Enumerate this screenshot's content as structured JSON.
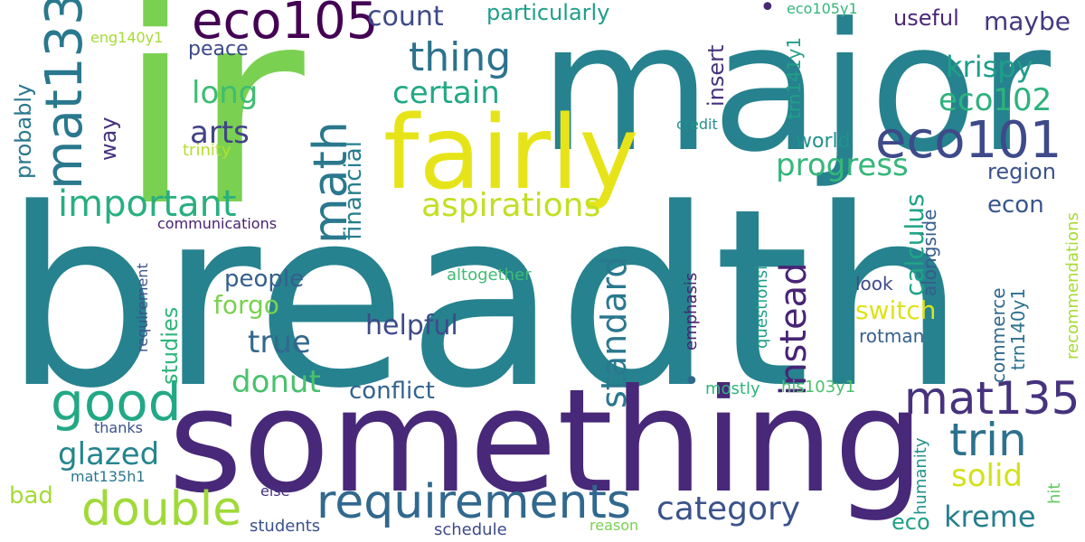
{
  "palette": {
    "dark_purple": "#440154",
    "indigo": "#482878",
    "slate_blue": "#3e4a89",
    "steel_blue": "#31688e",
    "teal": "#26828e",
    "sea_green": "#1f9e89",
    "green": "#35b779",
    "light_green": "#6ece58",
    "lime": "#b5de2b",
    "yellow": "#fde725"
  },
  "words": [
    {
      "text": "breadth",
      "color": "#26828e"
    },
    {
      "text": "ir",
      "color": "#7ad151"
    },
    {
      "text": "major",
      "color": "#26828e"
    },
    {
      "text": "something",
      "color": "#482878"
    },
    {
      "text": "fairly",
      "color": "#e6e419"
    },
    {
      "text": "requirements",
      "color": "#31688e"
    },
    {
      "text": "eco105",
      "color": "#440154"
    },
    {
      "text": "mat133",
      "color": "#2a788e"
    },
    {
      "text": "eco101",
      "color": "#3e4a89"
    },
    {
      "text": "mat135",
      "color": "#46327e"
    },
    {
      "text": "double",
      "color": "#a0da39"
    },
    {
      "text": "good",
      "color": "#22a884"
    },
    {
      "text": "trin",
      "color": "#2c728e"
    },
    {
      "text": "math",
      "color": "#2a788e"
    },
    {
      "text": "important",
      "color": "#29af7f"
    },
    {
      "text": "aspirations",
      "color": "#c2df23"
    },
    {
      "text": "category",
      "color": "#3b528b"
    },
    {
      "text": "standard",
      "color": "#2a788e"
    },
    {
      "text": "instead",
      "color": "#482475"
    },
    {
      "text": "thing",
      "color": "#2c728e"
    },
    {
      "text": "certain",
      "color": "#22a884"
    },
    {
      "text": "progress",
      "color": "#35b779"
    },
    {
      "text": "count",
      "color": "#3e4a89"
    },
    {
      "text": "krispy",
      "color": "#1f9e89"
    },
    {
      "text": "eco102",
      "color": "#2db27d"
    },
    {
      "text": "kreme",
      "color": "#277f8e"
    },
    {
      "text": "solid",
      "color": "#d2e21b"
    },
    {
      "text": "glazed",
      "color": "#25858e"
    },
    {
      "text": "true",
      "color": "#31688e"
    },
    {
      "text": "donut",
      "color": "#4ac16d"
    },
    {
      "text": "helpful",
      "color": "#3e4a89"
    },
    {
      "text": "long",
      "color": "#3fbc73"
    },
    {
      "text": "arts",
      "color": "#414487"
    },
    {
      "text": "switch",
      "color": "#dde318"
    },
    {
      "text": "forgo",
      "color": "#7ad151"
    },
    {
      "text": "people",
      "color": "#355f8d"
    },
    {
      "text": "conflict",
      "color": "#33638d"
    },
    {
      "text": "maybe",
      "color": "#453781"
    },
    {
      "text": "useful",
      "color": "#482878"
    },
    {
      "text": "particularly",
      "color": "#1f9e89"
    },
    {
      "text": "world",
      "color": "#21918c"
    },
    {
      "text": "region",
      "color": "#3b528b"
    },
    {
      "text": "econ",
      "color": "#39568c"
    },
    {
      "text": "eco",
      "color": "#1fa187"
    },
    {
      "text": "bad",
      "color": "#a5db36"
    },
    {
      "text": "peace",
      "color": "#3e4a89"
    },
    {
      "text": "calculus",
      "color": "#20a486"
    },
    {
      "text": "financial",
      "color": "#277f8e"
    },
    {
      "text": "insert",
      "color": "#46337e"
    },
    {
      "text": "way",
      "color": "#46327e"
    },
    {
      "text": "probably",
      "color": "#2a788e"
    },
    {
      "text": "studies",
      "color": "#2fb47c"
    },
    {
      "text": "look",
      "color": "#3e4a89"
    },
    {
      "text": "rotman",
      "color": "#355f8d"
    },
    {
      "text": "alongside",
      "color": "#365c8d"
    },
    {
      "text": "commerce",
      "color": "#31688e"
    },
    {
      "text": "emphasis",
      "color": "#482475"
    },
    {
      "text": "questionsi",
      "color": "#1f9e89"
    },
    {
      "text": "recommendations",
      "color": "#a5db36"
    },
    {
      "text": "trn140y1",
      "color": "#2c728e"
    },
    {
      "text": "trn141y1",
      "color": "#1fa088"
    },
    {
      "text": "communications",
      "color": "#481f70"
    },
    {
      "text": "requirement",
      "color": "#3b528b"
    },
    {
      "text": "altogether",
      "color": "#3fbc73"
    },
    {
      "text": "mostly",
      "color": "#2fb47c"
    },
    {
      "text": "his103y1",
      "color": "#4ac16d"
    },
    {
      "text": "humanity",
      "color": "#21918c"
    },
    {
      "text": "hit",
      "color": "#60ca60"
    },
    {
      "text": "thanks",
      "color": "#3b528b"
    },
    {
      "text": "mat135h1",
      "color": "#2a788e"
    },
    {
      "text": "else",
      "color": "#46327e"
    },
    {
      "text": "students",
      "color": "#3b528b"
    },
    {
      "text": "schedule",
      "color": "#3e4a89"
    },
    {
      "text": "reason",
      "color": "#7ad151"
    },
    {
      "text": "credit",
      "color": "#21918c"
    },
    {
      "text": "trinity",
      "color": "#b5de2b"
    },
    {
      "text": "eco105y1",
      "color": "#35b779"
    },
    {
      "text": "eng140y1",
      "color": "#a5db36"
    },
    {
      "text": "•",
      "color": "#482878"
    },
    {
      "text": "•",
      "color": "#31688e"
    }
  ]
}
